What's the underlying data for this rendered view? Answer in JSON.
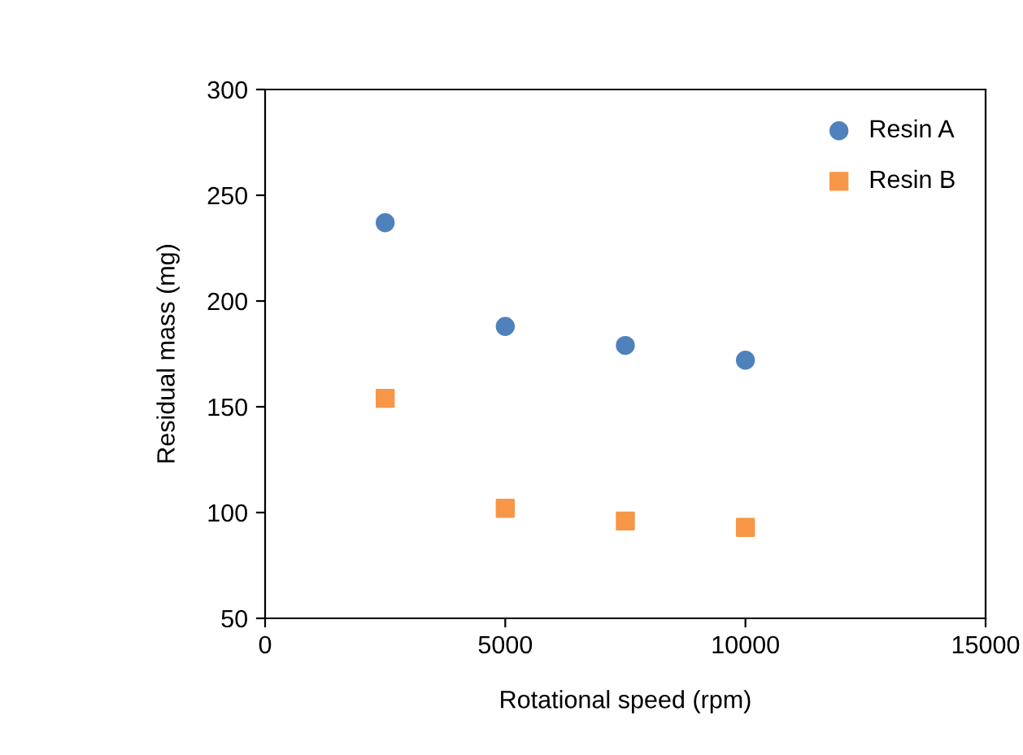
{
  "chart_data": {
    "type": "scatter",
    "xlabel": "Rotational speed (rpm)",
    "ylabel": "Residual mass (mg)",
    "x": [
      2500,
      5000,
      7500,
      10000
    ],
    "series": [
      {
        "name": "Resin A",
        "color": "#4f81bd",
        "marker": "circle",
        "values": [
          237,
          188,
          179,
          172
        ]
      },
      {
        "name": "Resin B",
        "color": "#f79646",
        "marker": "square",
        "values": [
          154,
          102,
          96,
          93
        ]
      }
    ],
    "xlim": [
      0,
      15000
    ],
    "xticks": [
      0,
      5000,
      10000,
      15000
    ],
    "ylim": [
      50,
      300
    ],
    "yticks": [
      50,
      100,
      150,
      200,
      250,
      300
    ],
    "grid": false,
    "legend": "top right"
  }
}
